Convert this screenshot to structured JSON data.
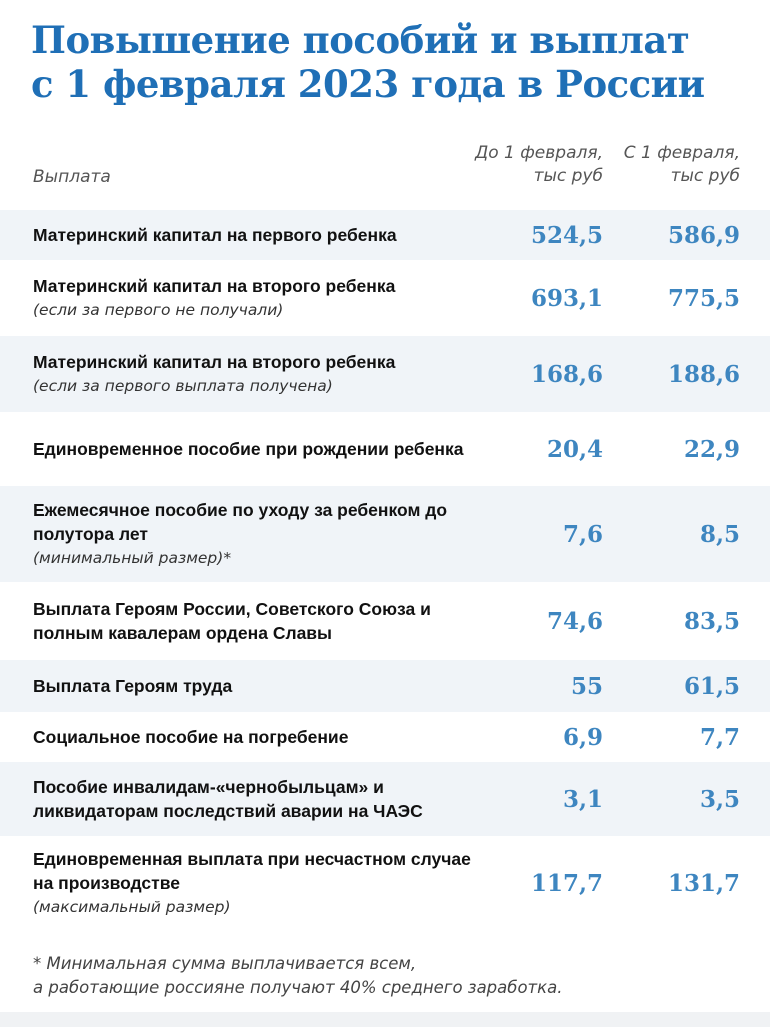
{
  "title": {
    "line1": "Повышение пособий и выплат",
    "line2": "с 1 февраля 2023 года в России"
  },
  "header": {
    "label": "Выплата",
    "col1": {
      "line1": "До 1 февраля,",
      "line2": "тыс руб"
    },
    "col2": {
      "line1": "С 1 февраля,",
      "line2": "тыс руб"
    }
  },
  "colors": {
    "title": "#1f6fb6",
    "values": "#3e86c0",
    "row_shade": "#f0f4f8"
  },
  "rows": [
    {
      "label": "Материнский капитал на первого ребенка",
      "note": "",
      "before": "524,5",
      "after": "586,9"
    },
    {
      "label": "Материнский капитал на второго ребенка",
      "note": "(если за первого не получали)",
      "before": "693,1",
      "after": "775,5"
    },
    {
      "label": "Материнский капитал на второго ребенка",
      "note": "(если за первого выплата получена)",
      "before": "168,6",
      "after": "188,6"
    },
    {
      "label": "Единовременное пособие при рождении ребенка",
      "note": "",
      "before": "20,4",
      "after": "22,9"
    },
    {
      "label": "Ежемесячное пособие по уходу за ребенком до полутора лет",
      "note": "(минимальный размер)*",
      "before": "7,6",
      "after": "8,5"
    },
    {
      "label": "Выплата Героям России, Советского Союза и полным кавалерам ордена Славы",
      "note": "",
      "before": "74,6",
      "after": "83,5"
    },
    {
      "label": "Выплата Героям труда",
      "note": "",
      "before": "55",
      "after": "61,5"
    },
    {
      "label": "Социальное пособие на погребение",
      "note": "",
      "before": "6,9",
      "after": "7,7"
    },
    {
      "label": "Пособие инвалидам-«чернобыльцам» и ликвидаторам последствий аварии на ЧАЭС",
      "note": "",
      "before": "3,1",
      "after": "3,5"
    },
    {
      "label": "Единовременная выплата при несчастном случае на производстве",
      "note": "(максимальный размер)",
      "before": "117,7",
      "after": "131,7"
    }
  ],
  "footnote": {
    "line1": "* Минимальная сумма выплачивается всем,",
    "line2": "а работающие россияне получают 40% среднего заработка."
  }
}
